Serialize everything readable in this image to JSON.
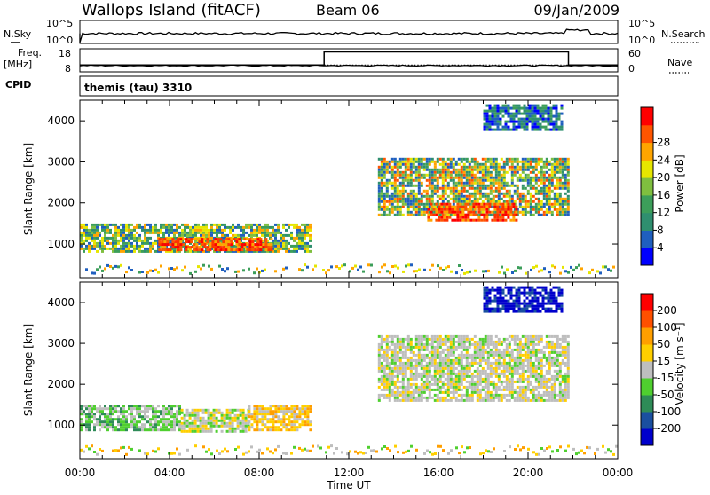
{
  "header": {
    "station": "Wallops Island (fitACF)",
    "beam": "Beam 06",
    "date": "09/Jan/2009"
  },
  "nsky_panel": {
    "left_label": "N.Sky",
    "right_label": "N.Search",
    "left_ticks": [
      "10^5",
      "10^0"
    ],
    "right_ticks": [
      "10^5",
      "10^0"
    ],
    "line_color": "#000000"
  },
  "freq_panel": {
    "left_label_line1": "Freq.",
    "left_label_line2": "[MHz]",
    "right_label": "Nave",
    "left_ticks": [
      "18",
      "8"
    ],
    "right_ticks": [
      "60",
      "0"
    ],
    "freq_level_mhz": 10.5,
    "nave_series": {
      "x_hours": [
        0,
        10.9,
        10.9,
        21.8,
        21.8,
        24
      ],
      "values": [
        18,
        18,
        52,
        52,
        18,
        18
      ]
    }
  },
  "cpid_panel": {
    "label": "CPID",
    "text": "themis (tau) 3310"
  },
  "chart_data": [
    {
      "type": "heatmap",
      "name": "power",
      "ylabel": "Slant Range [km]",
      "xlabel": "",
      "ylim": [
        180,
        4500
      ],
      "xlim_hours": [
        0,
        24
      ],
      "y_ticks": [
        1000,
        2000,
        3000,
        4000
      ],
      "colorbar": {
        "label": "Power [dB]",
        "ticks": [
          "4",
          "8",
          "12",
          "16",
          "20",
          "24",
          "28"
        ],
        "colors": [
          "#0000ff",
          "#1f5fbf",
          "#2f8f6f",
          "#3c9e5a",
          "#7fbf3f",
          "#e6e600",
          "#ffa500",
          "#ff5500",
          "#ff0000"
        ]
      },
      "regions": [
        {
          "t0": 0.0,
          "t1": 10.3,
          "r0": 800,
          "r1": 1500,
          "level": "medium-high"
        },
        {
          "t0": 3.5,
          "t1": 8.5,
          "r0": 850,
          "r1": 1150,
          "level": "high"
        },
        {
          "t0": 13.3,
          "t1": 21.8,
          "r0": 1700,
          "r1": 3100,
          "level": "medium"
        },
        {
          "t0": 15.5,
          "t1": 19.5,
          "r0": 1600,
          "r1": 2000,
          "level": "high"
        },
        {
          "t0": 18.0,
          "t1": 21.5,
          "r0": 3800,
          "r1": 4400,
          "level": "low"
        }
      ]
    },
    {
      "type": "heatmap",
      "name": "velocity",
      "ylabel": "Slant Range [km]",
      "xlabel": "Time UT",
      "ylim": [
        180,
        4500
      ],
      "xlim_hours": [
        0,
        24
      ],
      "y_ticks": [
        1000,
        2000,
        3000,
        4000
      ],
      "x_ticks": [
        "00:00",
        "04:00",
        "08:00",
        "12:00",
        "16:00",
        "20:00",
        "00:00"
      ],
      "colorbar": {
        "label": "Velocity [m s⁻¹]",
        "ticks": [
          "200",
          "100",
          "50",
          "15",
          "-15",
          "-50",
          "-100",
          "-200"
        ],
        "colors": [
          "#0000cc",
          "#1a4fa0",
          "#2e8b57",
          "#4fcf2f",
          "#bebebe",
          "#ffcf00",
          "#ff9f00",
          "#ff5000",
          "#ff0000"
        ]
      },
      "regions": [
        {
          "t0": 0.0,
          "t1": 4.5,
          "r0": 850,
          "r1": 1500,
          "level": "green-gray"
        },
        {
          "t0": 4.5,
          "t1": 7.5,
          "r0": 850,
          "r1": 1400,
          "level": "gray-green"
        },
        {
          "t0": 7.5,
          "t1": 10.3,
          "r0": 850,
          "r1": 1500,
          "level": "orange"
        },
        {
          "t0": 13.3,
          "t1": 21.8,
          "r0": 1600,
          "r1": 3200,
          "level": "gray"
        },
        {
          "t0": 18.0,
          "t1": 21.5,
          "r0": 3800,
          "r1": 4400,
          "level": "blue"
        }
      ]
    }
  ]
}
